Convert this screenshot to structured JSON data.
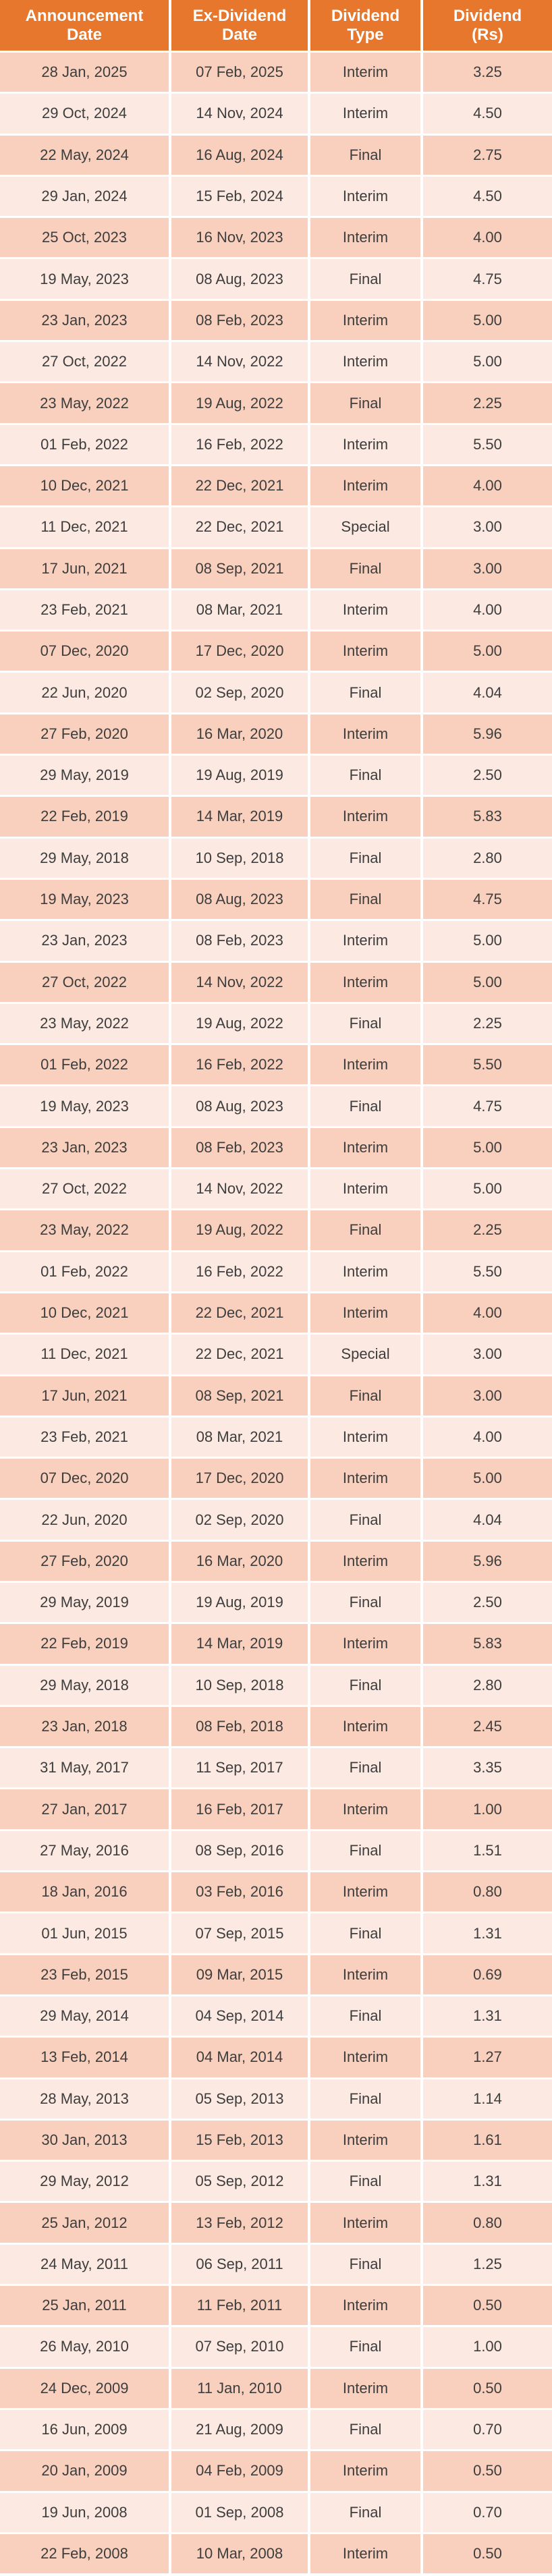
{
  "colors": {
    "header_bg": "#E8772E",
    "header_text": "#FFFFFF",
    "row_odd_bg": "#F8D0BD",
    "row_even_bg": "#FCEAE2",
    "body_text": "#3D3D3D",
    "grid_line": "#FFFFFF"
  },
  "table": {
    "columns": [
      "Announcement Date",
      "Ex-Dividend Date",
      "Dividend Type",
      "Dividend (Rs)"
    ],
    "rows": [
      {
        "announcement_date": "28 Jan, 2025",
        "ex_dividend_date": "07 Feb, 2025",
        "dividend_type": "Interim",
        "dividend_rs": "3.25"
      },
      {
        "announcement_date": "29 Oct, 2024",
        "ex_dividend_date": "14 Nov, 2024",
        "dividend_type": "Interim",
        "dividend_rs": "4.50"
      },
      {
        "announcement_date": "22 May, 2024",
        "ex_dividend_date": "16 Aug, 2024",
        "dividend_type": "Final",
        "dividend_rs": "2.75"
      },
      {
        "announcement_date": "29 Jan, 2024",
        "ex_dividend_date": "15 Feb, 2024",
        "dividend_type": "Interim",
        "dividend_rs": "4.50"
      },
      {
        "announcement_date": "25 Oct, 2023",
        "ex_dividend_date": "16 Nov, 2023",
        "dividend_type": "Interim",
        "dividend_rs": "4.00"
      },
      {
        "announcement_date": "19 May, 2023",
        "ex_dividend_date": "08 Aug, 2023",
        "dividend_type": "Final",
        "dividend_rs": "4.75"
      },
      {
        "announcement_date": "23 Jan, 2023",
        "ex_dividend_date": "08 Feb, 2023",
        "dividend_type": "Interim",
        "dividend_rs": "5.00"
      },
      {
        "announcement_date": "27 Oct, 2022",
        "ex_dividend_date": "14 Nov, 2022",
        "dividend_type": "Interim",
        "dividend_rs": "5.00"
      },
      {
        "announcement_date": "23 May, 2022",
        "ex_dividend_date": "19 Aug, 2022",
        "dividend_type": "Final",
        "dividend_rs": "2.25"
      },
      {
        "announcement_date": "01 Feb, 2022",
        "ex_dividend_date": "16 Feb, 2022",
        "dividend_type": "Interim",
        "dividend_rs": "5.50"
      },
      {
        "announcement_date": "10 Dec, 2021",
        "ex_dividend_date": "22 Dec, 2021",
        "dividend_type": "Interim",
        "dividend_rs": "4.00"
      },
      {
        "announcement_date": "11 Dec, 2021",
        "ex_dividend_date": "22 Dec, 2021",
        "dividend_type": "Special",
        "dividend_rs": "3.00"
      },
      {
        "announcement_date": "17 Jun, 2021",
        "ex_dividend_date": "08 Sep, 2021",
        "dividend_type": "Final",
        "dividend_rs": "3.00"
      },
      {
        "announcement_date": "23 Feb, 2021",
        "ex_dividend_date": "08 Mar, 2021",
        "dividend_type": "Interim",
        "dividend_rs": "4.00"
      },
      {
        "announcement_date": "07 Dec, 2020",
        "ex_dividend_date": "17 Dec, 2020",
        "dividend_type": "Interim",
        "dividend_rs": "5.00"
      },
      {
        "announcement_date": "22 Jun, 2020",
        "ex_dividend_date": "02 Sep, 2020",
        "dividend_type": "Final",
        "dividend_rs": "4.04"
      },
      {
        "announcement_date": "27 Feb, 2020",
        "ex_dividend_date": "16 Mar, 2020",
        "dividend_type": "Interim",
        "dividend_rs": "5.96"
      },
      {
        "announcement_date": "29 May, 2019",
        "ex_dividend_date": "19 Aug, 2019",
        "dividend_type": "Final",
        "dividend_rs": "2.50"
      },
      {
        "announcement_date": "22 Feb, 2019",
        "ex_dividend_date": "14 Mar, 2019",
        "dividend_type": "Interim",
        "dividend_rs": "5.83"
      },
      {
        "announcement_date": "29 May, 2018",
        "ex_dividend_date": "10 Sep, 2018",
        "dividend_type": "Final",
        "dividend_rs": "2.80"
      },
      {
        "announcement_date": "19 May, 2023",
        "ex_dividend_date": "08 Aug, 2023",
        "dividend_type": "Final",
        "dividend_rs": "4.75"
      },
      {
        "announcement_date": "23 Jan, 2023",
        "ex_dividend_date": "08 Feb, 2023",
        "dividend_type": "Interim",
        "dividend_rs": "5.00"
      },
      {
        "announcement_date": "27 Oct, 2022",
        "ex_dividend_date": "14 Nov, 2022",
        "dividend_type": "Interim",
        "dividend_rs": "5.00"
      },
      {
        "announcement_date": "23 May, 2022",
        "ex_dividend_date": "19 Aug, 2022",
        "dividend_type": "Final",
        "dividend_rs": "2.25"
      },
      {
        "announcement_date": "01 Feb, 2022",
        "ex_dividend_date": "16 Feb, 2022",
        "dividend_type": "Interim",
        "dividend_rs": "5.50"
      },
      {
        "announcement_date": "19 May, 2023",
        "ex_dividend_date": "08 Aug, 2023",
        "dividend_type": "Final",
        "dividend_rs": "4.75"
      },
      {
        "announcement_date": "23 Jan, 2023",
        "ex_dividend_date": "08 Feb, 2023",
        "dividend_type": "Interim",
        "dividend_rs": "5.00"
      },
      {
        "announcement_date": "27 Oct, 2022",
        "ex_dividend_date": "14 Nov, 2022",
        "dividend_type": "Interim",
        "dividend_rs": "5.00"
      },
      {
        "announcement_date": "23 May, 2022",
        "ex_dividend_date": "19 Aug, 2022",
        "dividend_type": "Final",
        "dividend_rs": "2.25"
      },
      {
        "announcement_date": "01 Feb, 2022",
        "ex_dividend_date": "16 Feb, 2022",
        "dividend_type": "Interim",
        "dividend_rs": "5.50"
      },
      {
        "announcement_date": "10 Dec, 2021",
        "ex_dividend_date": "22 Dec, 2021",
        "dividend_type": "Interim",
        "dividend_rs": "4.00"
      },
      {
        "announcement_date": "11 Dec, 2021",
        "ex_dividend_date": "22 Dec, 2021",
        "dividend_type": "Special",
        "dividend_rs": "3.00"
      },
      {
        "announcement_date": "17 Jun, 2021",
        "ex_dividend_date": "08 Sep, 2021",
        "dividend_type": "Final",
        "dividend_rs": "3.00"
      },
      {
        "announcement_date": "23 Feb, 2021",
        "ex_dividend_date": "08 Mar, 2021",
        "dividend_type": "Interim",
        "dividend_rs": "4.00"
      },
      {
        "announcement_date": "07 Dec, 2020",
        "ex_dividend_date": "17 Dec, 2020",
        "dividend_type": "Interim",
        "dividend_rs": "5.00"
      },
      {
        "announcement_date": "22 Jun, 2020",
        "ex_dividend_date": "02 Sep, 2020",
        "dividend_type": "Final",
        "dividend_rs": "4.04"
      },
      {
        "announcement_date": "27 Feb, 2020",
        "ex_dividend_date": "16 Mar, 2020",
        "dividend_type": "Interim",
        "dividend_rs": "5.96"
      },
      {
        "announcement_date": "29 May, 2019",
        "ex_dividend_date": "19 Aug, 2019",
        "dividend_type": "Final",
        "dividend_rs": "2.50"
      },
      {
        "announcement_date": "22 Feb, 2019",
        "ex_dividend_date": "14 Mar, 2019",
        "dividend_type": "Interim",
        "dividend_rs": "5.83"
      },
      {
        "announcement_date": "29 May, 2018",
        "ex_dividend_date": "10 Sep, 2018",
        "dividend_type": "Final",
        "dividend_rs": "2.80"
      },
      {
        "announcement_date": "23 Jan, 2018",
        "ex_dividend_date": "08 Feb, 2018",
        "dividend_type": "Interim",
        "dividend_rs": "2.45"
      },
      {
        "announcement_date": "31 May, 2017",
        "ex_dividend_date": "11 Sep, 2017",
        "dividend_type": "Final",
        "dividend_rs": "3.35"
      },
      {
        "announcement_date": "27 Jan, 2017",
        "ex_dividend_date": "16 Feb, 2017",
        "dividend_type": "Interim",
        "dividend_rs": "1.00"
      },
      {
        "announcement_date": "27 May, 2016",
        "ex_dividend_date": "08 Sep, 2016",
        "dividend_type": "Final",
        "dividend_rs": "1.51"
      },
      {
        "announcement_date": "18 Jan, 2016",
        "ex_dividend_date": "03 Feb, 2016",
        "dividend_type": "Interim",
        "dividend_rs": "0.80"
      },
      {
        "announcement_date": "01 Jun, 2015",
        "ex_dividend_date": "07 Sep, 2015",
        "dividend_type": "Final",
        "dividend_rs": "1.31"
      },
      {
        "announcement_date": "23 Feb, 2015",
        "ex_dividend_date": "09 Mar, 2015",
        "dividend_type": "Interim",
        "dividend_rs": "0.69"
      },
      {
        "announcement_date": "29 May, 2014",
        "ex_dividend_date": "04 Sep, 2014",
        "dividend_type": "Final",
        "dividend_rs": "1.31"
      },
      {
        "announcement_date": "13 Feb, 2014",
        "ex_dividend_date": "04 Mar, 2014",
        "dividend_type": "Interim",
        "dividend_rs": "1.27"
      },
      {
        "announcement_date": "28 May, 2013",
        "ex_dividend_date": "05 Sep, 2013",
        "dividend_type": "Final",
        "dividend_rs": "1.14"
      },
      {
        "announcement_date": "30 Jan, 2013",
        "ex_dividend_date": "15 Feb, 2013",
        "dividend_type": "Interim",
        "dividend_rs": "1.61"
      },
      {
        "announcement_date": "29 May, 2012",
        "ex_dividend_date": "05 Sep, 2012",
        "dividend_type": "Final",
        "dividend_rs": "1.31"
      },
      {
        "announcement_date": "25 Jan, 2012",
        "ex_dividend_date": "13 Feb, 2012",
        "dividend_type": "Interim",
        "dividend_rs": "0.80"
      },
      {
        "announcement_date": "24 May, 2011",
        "ex_dividend_date": "06 Sep, 2011",
        "dividend_type": "Final",
        "dividend_rs": "1.25"
      },
      {
        "announcement_date": "25 Jan, 2011",
        "ex_dividend_date": "11 Feb, 2011",
        "dividend_type": "Interim",
        "dividend_rs": "0.50"
      },
      {
        "announcement_date": "26 May, 2010",
        "ex_dividend_date": "07 Sep, 2010",
        "dividend_type": "Final",
        "dividend_rs": "1.00"
      },
      {
        "announcement_date": "24 Dec, 2009",
        "ex_dividend_date": "11 Jan, 2010",
        "dividend_type": "Interim",
        "dividend_rs": "0.50"
      },
      {
        "announcement_date": "16 Jun, 2009",
        "ex_dividend_date": "21 Aug, 2009",
        "dividend_type": "Final",
        "dividend_rs": "0.70"
      },
      {
        "announcement_date": "20 Jan, 2009",
        "ex_dividend_date": "04 Feb, 2009",
        "dividend_type": "Interim",
        "dividend_rs": "0.50"
      },
      {
        "announcement_date": "19 Jun, 2008",
        "ex_dividend_date": "01 Sep, 2008",
        "dividend_type": "Final",
        "dividend_rs": "0.70"
      },
      {
        "announcement_date": "22 Feb, 2008",
        "ex_dividend_date": "10 Mar, 2008",
        "dividend_type": "Interim",
        "dividend_rs": "0.50"
      }
    ]
  }
}
